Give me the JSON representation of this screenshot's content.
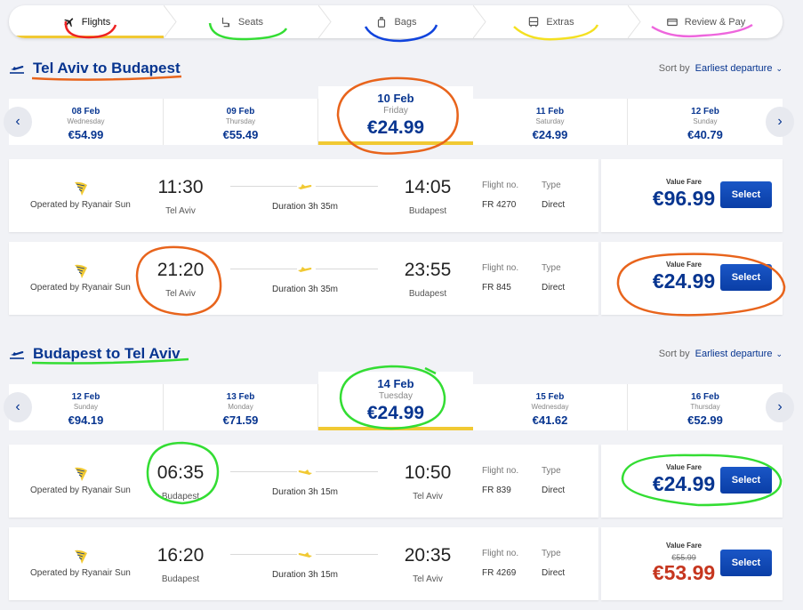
{
  "steps": [
    {
      "label": "Flights",
      "icon": "plane-icon",
      "active": true
    },
    {
      "label": "Seats",
      "icon": "seat-icon"
    },
    {
      "label": "Bags",
      "icon": "bag-icon"
    },
    {
      "label": "Extras",
      "icon": "bus-icon"
    },
    {
      "label": "Review & Pay",
      "icon": "card-icon"
    }
  ],
  "sort": {
    "label": "Sort by",
    "value": "Earliest departure"
  },
  "outbound": {
    "title": "Tel Aviv to Budapest",
    "dates": [
      {
        "date": "08 Feb",
        "weekday": "Wednesday",
        "price": "€54.99"
      },
      {
        "date": "09 Feb",
        "weekday": "Thursday",
        "price": "€55.49"
      },
      {
        "date": "10 Feb",
        "weekday": "Friday",
        "price": "€24.99"
      },
      {
        "date": "11 Feb",
        "weekday": "Saturday",
        "price": "€24.99"
      },
      {
        "date": "12 Feb",
        "weekday": "Sunday",
        "price": "€40.79"
      }
    ],
    "flights": [
      {
        "operator": "Operated by Ryanair Sun",
        "dep_time": "11:30",
        "dep_city": "Tel Aviv",
        "duration": "Duration 3h 35m",
        "arr_time": "14:05",
        "arr_city": "Budapest",
        "flight_no_label": "Flight no.",
        "flight_no": "FR 4270",
        "type_label": "Type",
        "type": "Direct",
        "fare_label": "Value Fare",
        "price": "€96.99",
        "select": "Select"
      },
      {
        "operator": "Operated by Ryanair Sun",
        "dep_time": "21:20",
        "dep_city": "Tel Aviv",
        "duration": "Duration 3h 35m",
        "arr_time": "23:55",
        "arr_city": "Budapest",
        "flight_no_label": "Flight no.",
        "flight_no": "FR 845",
        "type_label": "Type",
        "type": "Direct",
        "fare_label": "Value Fare",
        "price": "€24.99",
        "select": "Select"
      }
    ]
  },
  "inbound": {
    "title": "Budapest to Tel Aviv",
    "dates": [
      {
        "date": "12 Feb",
        "weekday": "Sunday",
        "price": "€94.19"
      },
      {
        "date": "13 Feb",
        "weekday": "Monday",
        "price": "€71.59"
      },
      {
        "date": "14 Feb",
        "weekday": "Tuesday",
        "price": "€24.99"
      },
      {
        "date": "15 Feb",
        "weekday": "Wednesday",
        "price": "€41.62"
      },
      {
        "date": "16 Feb",
        "weekday": "Thursday",
        "price": "€52.99"
      }
    ],
    "flights": [
      {
        "operator": "Operated by Ryanair Sun",
        "dep_time": "06:35",
        "dep_city": "Budapest",
        "duration": "Duration 3h 15m",
        "arr_time": "10:50",
        "arr_city": "Tel Aviv",
        "flight_no_label": "Flight no.",
        "flight_no": "FR 839",
        "type_label": "Type",
        "type": "Direct",
        "fare_label": "Value Fare",
        "price": "€24.99",
        "select": "Select"
      },
      {
        "operator": "Operated by Ryanair Sun",
        "dep_time": "16:20",
        "dep_city": "Budapest",
        "duration": "Duration 3h 15m",
        "arr_time": "20:35",
        "arr_city": "Tel Aviv",
        "flight_no_label": "Flight no.",
        "flight_no": "FR 4269",
        "type_label": "Type",
        "type": "Direct",
        "fare_label": "Value Fare",
        "old_price": "€55.99",
        "price": "€53.99",
        "select": "Select"
      }
    ]
  },
  "colors": {
    "brand_blue": "#073590",
    "accent_yellow": "#f1c933",
    "sale_red": "#c6361f",
    "annotation_red": "#ee2222",
    "annotation_green": "#33dd33",
    "annotation_blue": "#1144dd",
    "annotation_yellow": "#f4e020",
    "annotation_pink": "#ee66dd",
    "annotation_orange": "#e8641c"
  }
}
